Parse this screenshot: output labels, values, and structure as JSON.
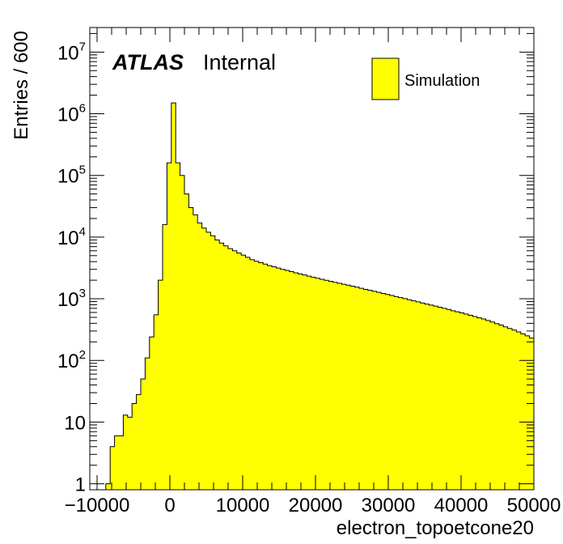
{
  "chart_data": {
    "type": "histogram",
    "label_main": "ATLAS",
    "label_sub": "Internal",
    "xlabel": "electron_topoetcone20",
    "ylabel": "Entries / 600",
    "xlim": [
      -11000,
      50000
    ],
    "ylim": [
      0.8,
      25000000
    ],
    "yscale": "log",
    "bin_width": 600,
    "x_ticks": [
      {
        "value": -10000,
        "label": "−10000"
      },
      {
        "value": 0,
        "label": "0"
      },
      {
        "value": 10000,
        "label": "10000"
      },
      {
        "value": 20000,
        "label": "20000"
      },
      {
        "value": 30000,
        "label": "30000"
      },
      {
        "value": 40000,
        "label": "40000"
      },
      {
        "value": 50000,
        "label": "50000"
      }
    ],
    "y_ticks": [
      {
        "value": 1,
        "base": "1",
        "exp": ""
      },
      {
        "value": 10,
        "base": "10",
        "exp": ""
      },
      {
        "value": 100,
        "base": "10",
        "exp": "2"
      },
      {
        "value": 1000,
        "base": "10",
        "exp": "3"
      },
      {
        "value": 10000,
        "base": "10",
        "exp": "4"
      },
      {
        "value": 100000,
        "base": "10",
        "exp": "5"
      },
      {
        "value": 1000000,
        "base": "10",
        "exp": "6"
      },
      {
        "value": 10000000,
        "base": "10",
        "exp": "7"
      }
    ],
    "legend": {
      "entries": [
        {
          "label": "Simulation",
          "color": "#ffff00"
        }
      ],
      "placement": "top-right"
    },
    "series": [
      {
        "name": "Simulation",
        "color": "#ffff00",
        "bins": [
          [
            -8800,
            1
          ],
          [
            -8200,
            4
          ],
          [
            -7600,
            6
          ],
          [
            -7000,
            6
          ],
          [
            -6400,
            13
          ],
          [
            -5800,
            12
          ],
          [
            -5200,
            20
          ],
          [
            -4600,
            28
          ],
          [
            -4000,
            50
          ],
          [
            -3400,
            110
          ],
          [
            -2800,
            240
          ],
          [
            -2200,
            550
          ],
          [
            -1600,
            2000
          ],
          [
            -1000,
            16000
          ],
          [
            -400,
            160000
          ],
          [
            200,
            1500000
          ],
          [
            800,
            160000
          ],
          [
            1400,
            100000
          ],
          [
            2000,
            50000
          ],
          [
            2600,
            30000
          ],
          [
            3200,
            23000
          ],
          [
            3800,
            17000
          ],
          [
            4400,
            14000
          ],
          [
            5000,
            12000
          ],
          [
            5600,
            10500
          ],
          [
            6200,
            9000
          ],
          [
            6800,
            8000
          ],
          [
            7400,
            7200
          ],
          [
            8000,
            6500
          ],
          [
            8600,
            6000
          ],
          [
            9200,
            5500
          ],
          [
            9800,
            5100
          ],
          [
            10400,
            4700
          ],
          [
            11000,
            4300
          ],
          [
            11600,
            4050
          ],
          [
            12200,
            3850
          ],
          [
            12800,
            3650
          ],
          [
            13400,
            3450
          ],
          [
            14000,
            3300
          ],
          [
            14600,
            3150
          ],
          [
            15200,
            3000
          ],
          [
            15800,
            2880
          ],
          [
            16400,
            2760
          ],
          [
            17000,
            2640
          ],
          [
            17600,
            2530
          ],
          [
            18200,
            2430
          ],
          [
            18800,
            2330
          ],
          [
            19400,
            2240
          ],
          [
            20000,
            2150
          ],
          [
            20600,
            2070
          ],
          [
            21200,
            1990
          ],
          [
            21800,
            1920
          ],
          [
            22400,
            1850
          ],
          [
            23000,
            1780
          ],
          [
            23600,
            1720
          ],
          [
            24200,
            1660
          ],
          [
            24800,
            1600
          ],
          [
            25400,
            1540
          ],
          [
            26000,
            1480
          ],
          [
            26600,
            1420
          ],
          [
            27200,
            1370
          ],
          [
            27800,
            1320
          ],
          [
            28400,
            1270
          ],
          [
            29000,
            1220
          ],
          [
            29600,
            1175
          ],
          [
            30200,
            1130
          ],
          [
            30800,
            1085
          ],
          [
            31400,
            1045
          ],
          [
            32000,
            1005
          ],
          [
            32600,
            965
          ],
          [
            33200,
            925
          ],
          [
            33800,
            890
          ],
          [
            34400,
            855
          ],
          [
            35000,
            820
          ],
          [
            35600,
            790
          ],
          [
            36200,
            760
          ],
          [
            36800,
            730
          ],
          [
            37400,
            700
          ],
          [
            38000,
            670
          ],
          [
            38600,
            640
          ],
          [
            39200,
            615
          ],
          [
            39800,
            590
          ],
          [
            40400,
            565
          ],
          [
            41000,
            540
          ],
          [
            41600,
            515
          ],
          [
            42200,
            490
          ],
          [
            42800,
            470
          ],
          [
            43400,
            445
          ],
          [
            44000,
            420
          ],
          [
            44600,
            395
          ],
          [
            45200,
            375
          ],
          [
            45800,
            350
          ],
          [
            46400,
            330
          ],
          [
            47000,
            310
          ],
          [
            47600,
            290
          ],
          [
            48200,
            270
          ],
          [
            48800,
            250
          ],
          [
            49400,
            230
          ]
        ]
      }
    ]
  }
}
